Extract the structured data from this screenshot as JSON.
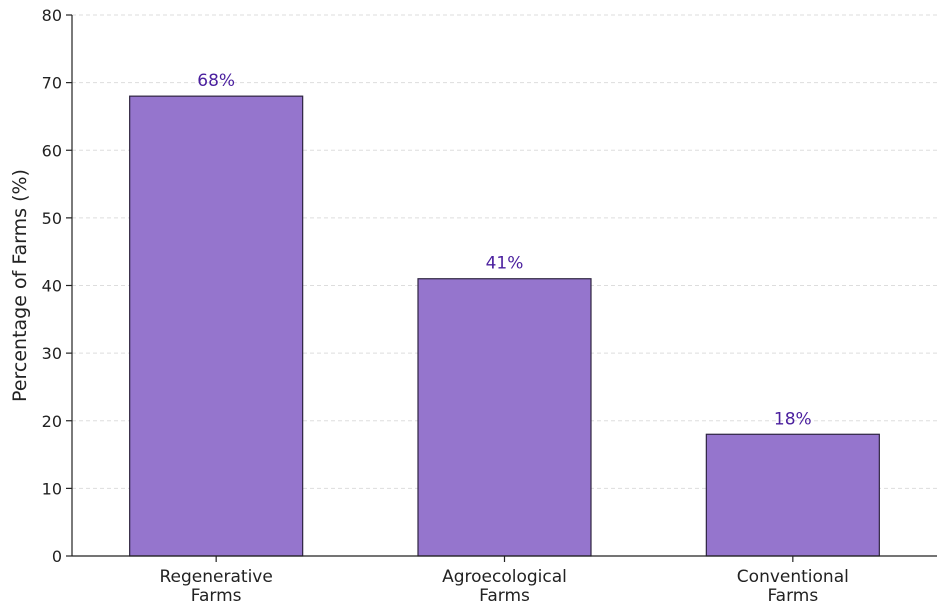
{
  "chart_data": {
    "type": "bar",
    "title": "",
    "xlabel": "",
    "ylabel": "Percentage of Farms (%)",
    "ylim": [
      0,
      80
    ],
    "yticks": [
      0,
      10,
      20,
      30,
      40,
      50,
      60,
      70,
      80
    ],
    "grid": true,
    "categories": [
      [
        "Regenerative",
        "Farms"
      ],
      [
        "Agroecological",
        "Farms"
      ],
      [
        "Conventional",
        "Farms"
      ]
    ],
    "values": [
      68,
      41,
      18
    ],
    "data_labels": [
      "68%",
      "41%",
      "18%"
    ],
    "colors": {
      "bar_fill": "#9575cd",
      "bar_stroke": "#2e2440",
      "value_label": "#4a1f9e",
      "axis": "#222222",
      "grid": "#dddddd"
    }
  }
}
